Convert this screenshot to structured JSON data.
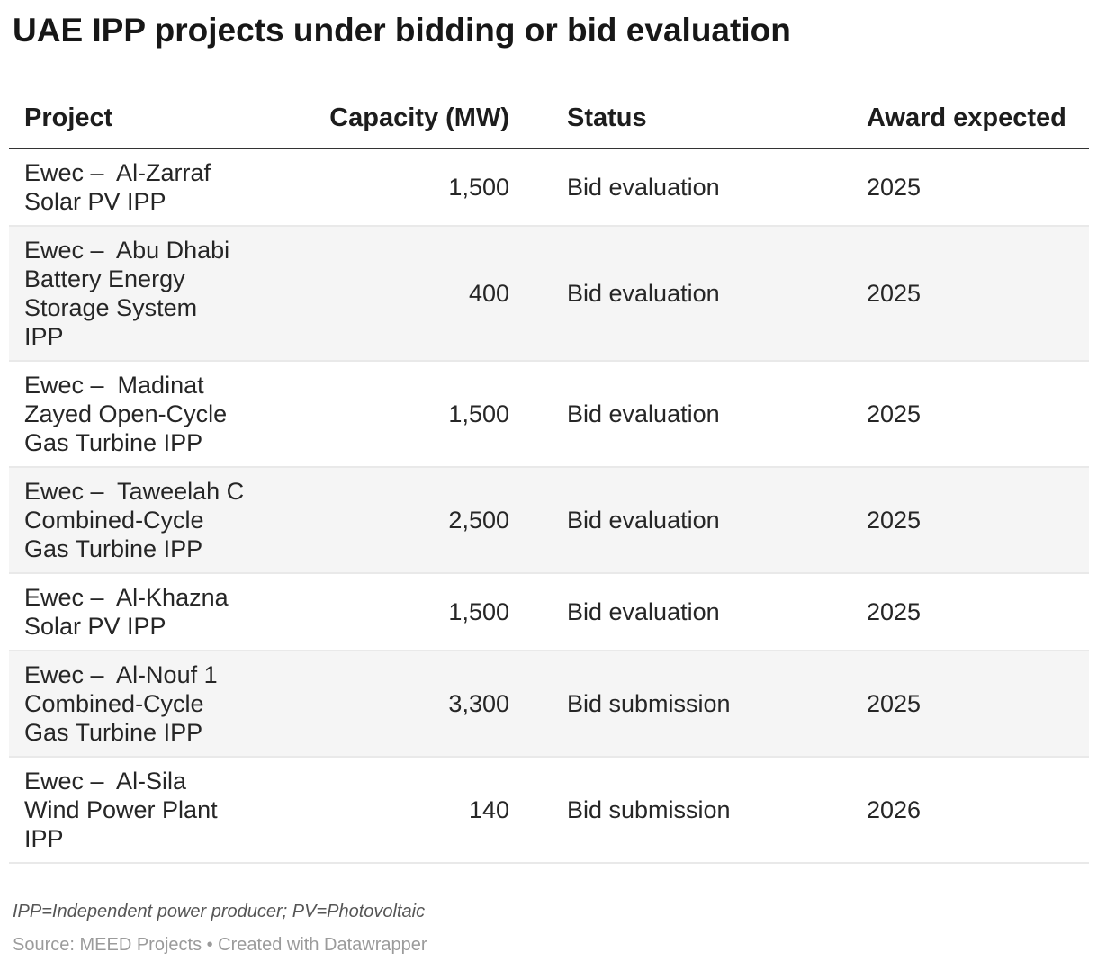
{
  "title": "UAE IPP projects under bidding or bid evaluation",
  "chart_data": {
    "type": "table",
    "title": "UAE IPP projects under bidding or bid evaluation",
    "columns": [
      "Project",
      "Capacity (MW)",
      "Status",
      "Award expected"
    ],
    "rows": [
      {
        "project": "Ewec –  Al-Zarraf\nSolar PV IPP",
        "capacity": "1,500",
        "capacity_mw": 1500,
        "status": "Bid evaluation",
        "award": "2025"
      },
      {
        "project": "Ewec –  Abu Dhabi\nBattery Energy\nStorage System\nIPP",
        "capacity": "400",
        "capacity_mw": 400,
        "status": "Bid evaluation",
        "award": "2025"
      },
      {
        "project": "Ewec –  Madinat\nZayed Open-Cycle\nGas Turbine IPP",
        "capacity": "1,500",
        "capacity_mw": 1500,
        "status": "Bid evaluation",
        "award": "2025"
      },
      {
        "project": "Ewec –  Taweelah C\nCombined-Cycle\nGas Turbine IPP",
        "capacity": "2,500",
        "capacity_mw": 2500,
        "status": "Bid evaluation",
        "award": "2025"
      },
      {
        "project": "Ewec –  Al-Khazna\nSolar PV IPP",
        "capacity": "1,500",
        "capacity_mw": 1500,
        "status": "Bid evaluation",
        "award": "2025"
      },
      {
        "project": "Ewec –  Al-Nouf 1\nCombined-Cycle\nGas Turbine IPP",
        "capacity": "3,300",
        "capacity_mw": 3300,
        "status": "Bid submission",
        "award": "2025"
      },
      {
        "project": "Ewec –  Al-Sila\nWind Power Plant\nIPP",
        "capacity": "140",
        "capacity_mw": 140,
        "status": "Bid submission",
        "award": "2026"
      }
    ]
  },
  "footer": {
    "note": "IPP=Independent power producer; PV=Photovoltaic",
    "source": "Source: MEED Projects • Created with Datawrapper"
  },
  "colors": {
    "title_text": "#171717",
    "body_text": "#262626",
    "header_rule": "#333333",
    "row_stripe": "#f5f5f5",
    "row_border": "#e9e9e9",
    "note_text": "#565656",
    "source_text": "#9b9b9b",
    "background": "#ffffff"
  }
}
